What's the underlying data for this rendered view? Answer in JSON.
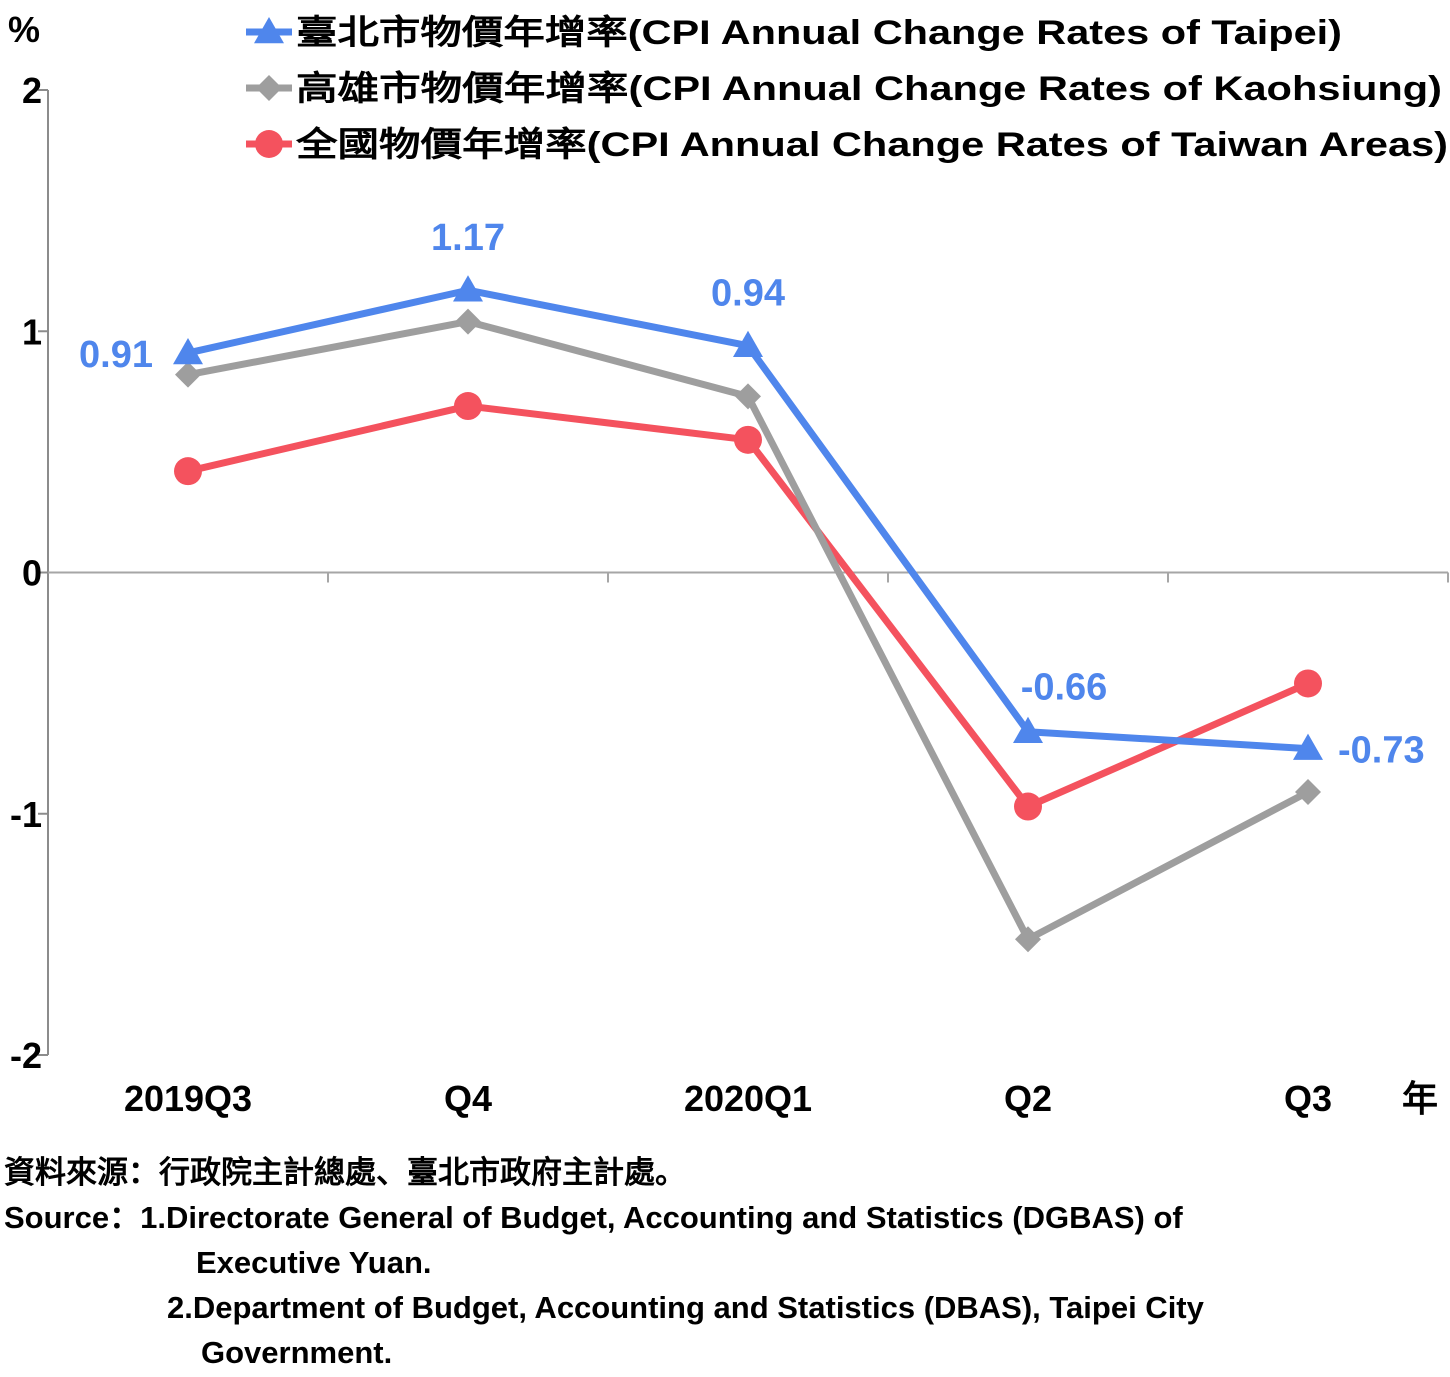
{
  "chart_data": {
    "type": "line",
    "ylabel": "%",
    "xlabel": "年",
    "ylim": [
      -2,
      2
    ],
    "yticks": [
      "2",
      "1",
      "0",
      "-1",
      "-2"
    ],
    "categories": [
      "2019Q3",
      "Q4",
      "2020Q1",
      "Q2",
      "Q3"
    ],
    "legend_position": "top-right",
    "series": [
      {
        "name": "臺北市物價年增率(CPI Annual Change Rates of Taipei)",
        "marker": "triangle",
        "color": "#4f86ec",
        "values": [
          0.91,
          1.17,
          0.94,
          -0.66,
          -0.73
        ],
        "data_labels": [
          "0.91",
          "1.17",
          "0.94",
          "-0.66",
          "-0.73"
        ]
      },
      {
        "name": "高雄市物價年增率(CPI Annual Change Rates of Kaohsiung)",
        "marker": "diamond",
        "color": "#9e9e9e",
        "values": [
          0.82,
          1.04,
          0.73,
          -1.52,
          -0.91
        ]
      },
      {
        "name": "全國物價年增率(CPI Annual Change Rates of Taiwan Areas)",
        "marker": "circle",
        "color": "#f4525e",
        "values": [
          0.42,
          0.69,
          0.55,
          -0.97,
          -0.46
        ]
      }
    ]
  },
  "source": {
    "line1": "資料來源：行政院主計總處、臺北市政府主計處。",
    "line2": "Source：1.Directorate General of Budget, Accounting and Statistics (DGBAS) of",
    "line3": "Executive Yuan.",
    "line4": "2.Department of Budget, Accounting and Statistics (DBAS), Taipei City",
    "line5": "Government."
  }
}
